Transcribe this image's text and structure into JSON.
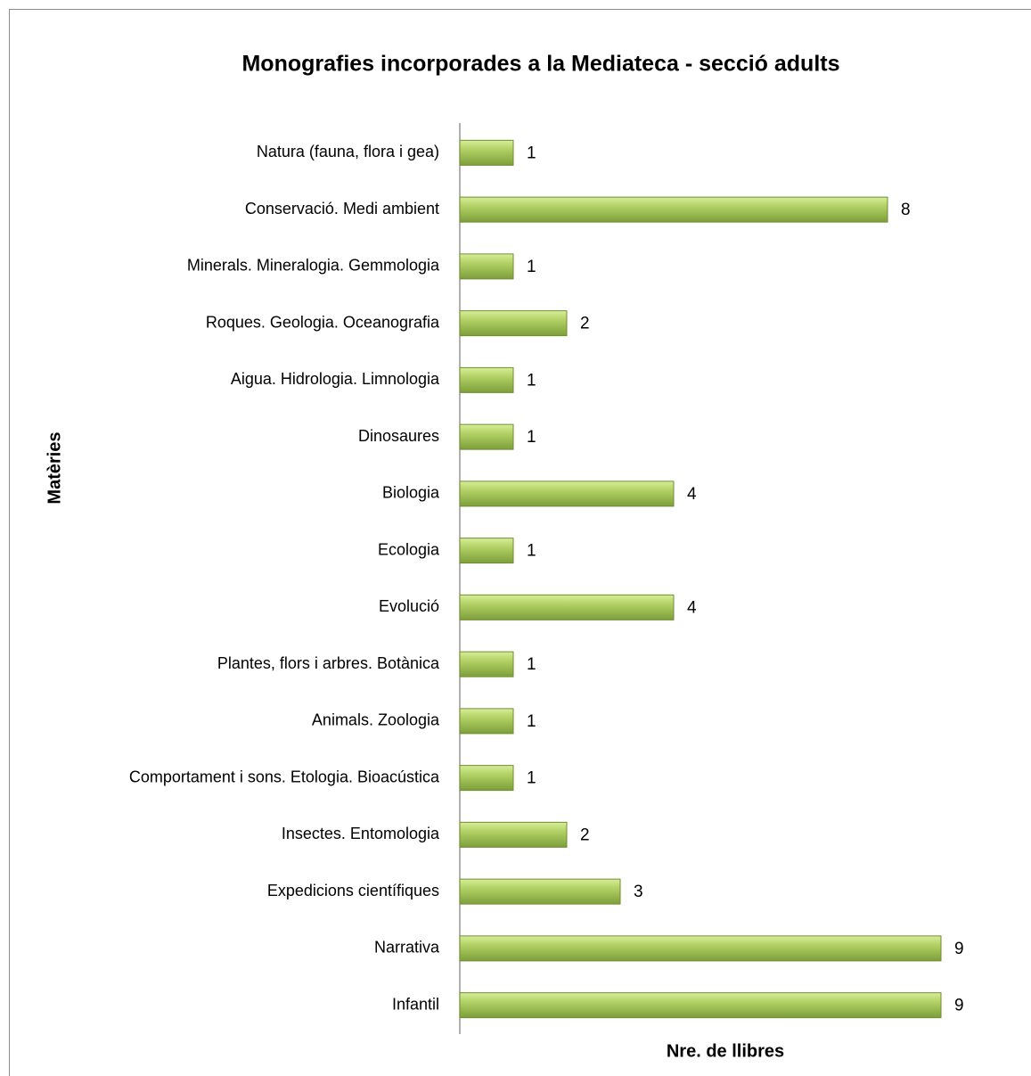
{
  "chart_data": {
    "type": "barh",
    "title": "Monografies incorporades a la Mediateca - secció adults",
    "y_label": "Matèries",
    "x_label": "Nre. de llibres",
    "categories": [
      "Natura (fauna, flora i gea)",
      "Conservació. Medi ambient",
      "Minerals. Mineralogia. Gemmologia",
      "Roques. Geologia. Oceanografia",
      "Aigua. Hidrologia. Limnologia",
      "Dinosaures",
      "Biologia",
      "Ecologia",
      "Evolució",
      "Plantes, flors i arbres. Botànica",
      "Animals. Zoologia",
      "Comportament i sons. Etologia. Bioacústica",
      "Insectes. Entomologia",
      "Expedicions científiques",
      "Narrativa",
      "Infantil"
    ],
    "values": [
      1,
      8,
      1,
      2,
      1,
      1,
      4,
      1,
      4,
      1,
      1,
      1,
      2,
      3,
      9,
      9
    ],
    "color": "#9bbb59",
    "xlim": [
      0,
      9
    ]
  }
}
